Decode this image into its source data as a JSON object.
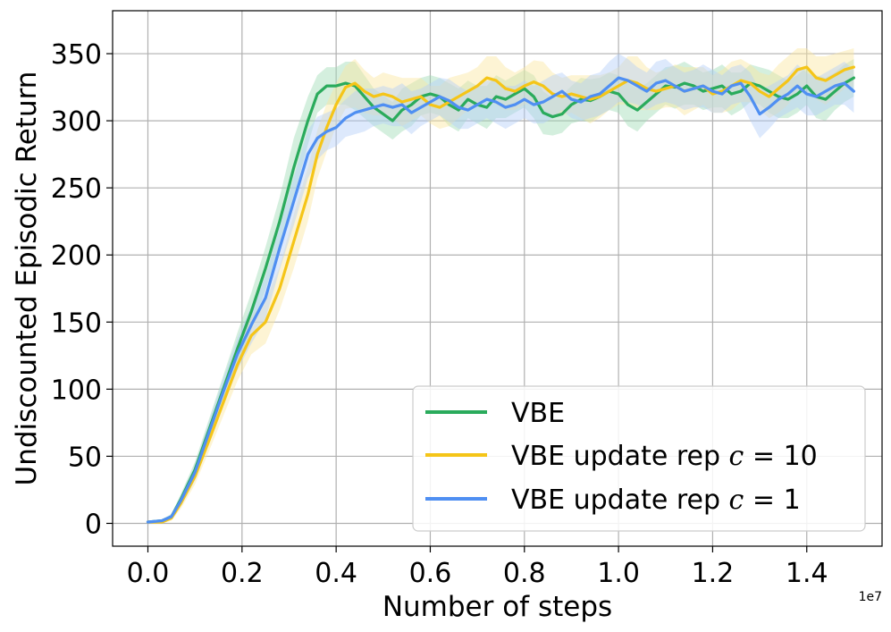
{
  "chart_data": {
    "type": "line",
    "title": "",
    "xlabel": "Number of steps",
    "ylabel": "Undiscounted Episodic Return",
    "x_offset_label": "1e7",
    "xlim": [
      -0.075,
      1.56
    ],
    "ylim": [
      -17,
      382
    ],
    "xticks": [
      0.0,
      0.2,
      0.4,
      0.6,
      0.8,
      1.0,
      1.2,
      1.4
    ],
    "xtick_labels": [
      "0.0",
      "0.2",
      "0.4",
      "0.6",
      "0.8",
      "1.0",
      "1.2",
      "1.4"
    ],
    "yticks": [
      0,
      50,
      100,
      150,
      200,
      250,
      300,
      350
    ],
    "ytick_labels": [
      "0",
      "50",
      "100",
      "150",
      "200",
      "250",
      "300",
      "350"
    ],
    "grid": true,
    "legend_position": "lower-right",
    "series": [
      {
        "name": "VBE",
        "legend_label": "VBE",
        "color": "#2aab5c",
        "band_color": "#9fdcb5",
        "x": [
          0,
          0.03,
          0.05,
          0.07,
          0.1,
          0.13,
          0.16,
          0.19,
          0.22,
          0.25,
          0.28,
          0.31,
          0.34,
          0.36,
          0.38,
          0.4,
          0.42,
          0.44,
          0.46,
          0.48,
          0.5,
          0.52,
          0.54,
          0.56,
          0.58,
          0.6,
          0.62,
          0.64,
          0.66,
          0.68,
          0.7,
          0.72,
          0.74,
          0.76,
          0.78,
          0.8,
          0.82,
          0.84,
          0.86,
          0.88,
          0.9,
          0.92,
          0.94,
          0.96,
          0.98,
          1.0,
          1.02,
          1.04,
          1.06,
          1.08,
          1.1,
          1.12,
          1.14,
          1.16,
          1.18,
          1.2,
          1.22,
          1.24,
          1.26,
          1.28,
          1.3,
          1.32,
          1.34,
          1.36,
          1.38,
          1.4,
          1.42,
          1.44,
          1.46,
          1.48,
          1.5
        ],
        "y": [
          1,
          2,
          5,
          18,
          40,
          70,
          100,
          130,
          158,
          190,
          225,
          265,
          300,
          320,
          326,
          326,
          328,
          326,
          318,
          310,
          305,
          300,
          308,
          312,
          318,
          320,
          318,
          312,
          308,
          316,
          312,
          310,
          318,
          316,
          320,
          324,
          318,
          306,
          303,
          305,
          312,
          316,
          315,
          318,
          322,
          320,
          312,
          308,
          314,
          320,
          326,
          325,
          328,
          326,
          322,
          324,
          326,
          320,
          322,
          328,
          326,
          322,
          318,
          316,
          320,
          326,
          318,
          316,
          322,
          328,
          332
        ],
        "band": [
          0,
          1,
          2,
          4,
          6,
          8,
          10,
          12,
          14,
          16,
          18,
          22,
          18,
          14,
          14,
          14,
          16,
          18,
          16,
          14,
          14,
          14,
          16,
          16,
          14,
          14,
          14,
          16,
          16,
          14,
          14,
          16,
          16,
          14,
          14,
          14,
          16,
          16,
          14,
          14,
          14,
          16,
          16,
          14,
          14,
          14,
          16,
          16,
          14,
          14,
          14,
          16,
          16,
          14,
          14,
          14,
          16,
          16,
          14,
          14,
          14,
          16,
          16,
          14,
          14,
          14,
          16,
          16,
          14,
          14,
          14
        ]
      },
      {
        "name": "VBE update rep c=10",
        "legend_label": "VBE update rep ",
        "legend_eq": " = 10",
        "color": "#f5c518",
        "band_color": "#fbe7a0",
        "x": [
          0,
          0.03,
          0.05,
          0.07,
          0.1,
          0.13,
          0.16,
          0.19,
          0.22,
          0.25,
          0.28,
          0.31,
          0.34,
          0.36,
          0.38,
          0.4,
          0.42,
          0.44,
          0.46,
          0.48,
          0.5,
          0.52,
          0.54,
          0.56,
          0.58,
          0.6,
          0.62,
          0.64,
          0.66,
          0.68,
          0.7,
          0.72,
          0.74,
          0.76,
          0.78,
          0.8,
          0.82,
          0.84,
          0.86,
          0.88,
          0.9,
          0.92,
          0.94,
          0.96,
          0.98,
          1.0,
          1.02,
          1.04,
          1.06,
          1.08,
          1.1,
          1.12,
          1.14,
          1.16,
          1.18,
          1.2,
          1.22,
          1.24,
          1.26,
          1.28,
          1.3,
          1.32,
          1.34,
          1.36,
          1.38,
          1.4,
          1.42,
          1.44,
          1.46,
          1.48,
          1.5
        ],
        "y": [
          1,
          1,
          4,
          15,
          35,
          62,
          90,
          118,
          140,
          150,
          175,
          210,
          245,
          275,
          295,
          312,
          325,
          328,
          322,
          318,
          320,
          318,
          314,
          316,
          318,
          312,
          310,
          314,
          318,
          322,
          326,
          332,
          330,
          324,
          322,
          326,
          329,
          326,
          320,
          318,
          320,
          318,
          316,
          318,
          322,
          326,
          330,
          328,
          324,
          322,
          324,
          326,
          322,
          324,
          326,
          320,
          322,
          326,
          330,
          328,
          322,
          318,
          324,
          330,
          338,
          340,
          332,
          330,
          334,
          338,
          340
        ],
        "band": [
          0,
          1,
          2,
          4,
          6,
          8,
          10,
          12,
          14,
          16,
          16,
          20,
          20,
          18,
          18,
          16,
          16,
          18,
          16,
          14,
          16,
          16,
          18,
          16,
          14,
          14,
          16,
          18,
          16,
          14,
          14,
          16,
          18,
          16,
          14,
          14,
          16,
          18,
          16,
          14,
          14,
          16,
          18,
          16,
          14,
          14,
          18,
          20,
          16,
          14,
          14,
          16,
          18,
          16,
          14,
          14,
          16,
          18,
          16,
          14,
          14,
          16,
          18,
          18,
          16,
          14,
          16,
          18,
          16,
          14,
          14
        ]
      },
      {
        "name": "VBE update rep c=1",
        "legend_label": "VBE update rep ",
        "legend_eq": " = 1",
        "color": "#4f8ff2",
        "band_color": "#b3cff8",
        "x": [
          0,
          0.03,
          0.05,
          0.07,
          0.1,
          0.13,
          0.16,
          0.19,
          0.22,
          0.25,
          0.28,
          0.31,
          0.34,
          0.36,
          0.38,
          0.4,
          0.42,
          0.44,
          0.46,
          0.48,
          0.5,
          0.52,
          0.54,
          0.56,
          0.58,
          0.6,
          0.62,
          0.64,
          0.66,
          0.68,
          0.7,
          0.72,
          0.74,
          0.76,
          0.78,
          0.8,
          0.82,
          0.84,
          0.86,
          0.88,
          0.9,
          0.92,
          0.94,
          0.96,
          0.98,
          1.0,
          1.02,
          1.04,
          1.06,
          1.08,
          1.1,
          1.12,
          1.14,
          1.16,
          1.18,
          1.2,
          1.22,
          1.24,
          1.26,
          1.28,
          1.3,
          1.32,
          1.34,
          1.36,
          1.38,
          1.4,
          1.42,
          1.44,
          1.46,
          1.48,
          1.5
        ],
        "y": [
          1,
          2,
          5,
          17,
          38,
          68,
          98,
          126,
          148,
          168,
          205,
          240,
          275,
          287,
          292,
          295,
          302,
          306,
          308,
          310,
          312,
          310,
          312,
          306,
          310,
          314,
          318,
          315,
          310,
          308,
          312,
          316,
          314,
          310,
          312,
          316,
          312,
          314,
          318,
          322,
          316,
          314,
          318,
          320,
          326,
          332,
          330,
          326,
          322,
          328,
          330,
          326,
          322,
          324,
          326,
          322,
          320,
          326,
          328,
          318,
          305,
          310,
          316,
          320,
          326,
          320,
          318,
          322,
          326,
          328,
          322
        ],
        "band": [
          0,
          1,
          2,
          4,
          6,
          8,
          10,
          12,
          14,
          16,
          16,
          18,
          18,
          16,
          14,
          14,
          14,
          16,
          16,
          14,
          14,
          14,
          16,
          16,
          14,
          14,
          14,
          16,
          16,
          14,
          14,
          14,
          16,
          16,
          14,
          14,
          14,
          16,
          16,
          14,
          14,
          14,
          16,
          16,
          18,
          18,
          16,
          14,
          14,
          16,
          16,
          14,
          14,
          14,
          16,
          16,
          14,
          14,
          14,
          18,
          18,
          16,
          14,
          14,
          16,
          16,
          14,
          14,
          14,
          16,
          16
        ]
      }
    ]
  }
}
